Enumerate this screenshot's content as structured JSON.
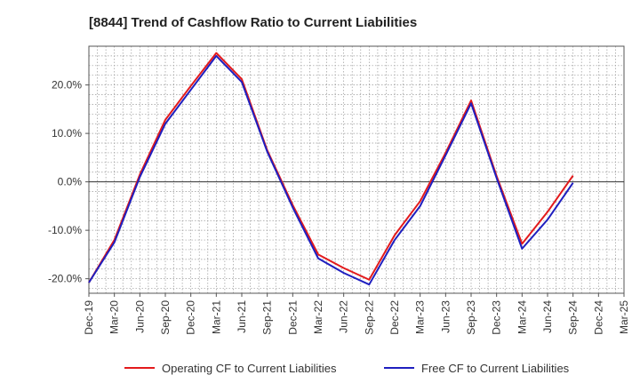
{
  "chart_data": {
    "type": "line",
    "title": "[8844]  Trend of Cashflow Ratio to Current Liabilities",
    "xlabel": "",
    "ylabel": "",
    "categories": [
      "Dec-19",
      "Mar-20",
      "Jun-20",
      "Sep-20",
      "Dec-20",
      "Mar-21",
      "Jun-21",
      "Sep-21",
      "Dec-21",
      "Mar-22",
      "Jun-22",
      "Sep-22",
      "Dec-22",
      "Mar-23",
      "Jun-23",
      "Sep-23",
      "Dec-23",
      "Mar-24",
      "Jun-24",
      "Sep-24",
      "Dec-24",
      "Mar-25"
    ],
    "ylim": [
      -23.0,
      28.0
    ],
    "yticks": [
      -20,
      -10,
      0,
      10,
      20
    ],
    "ytick_labels": [
      "-20.0%",
      "-10.0%",
      "0.0%",
      "10.0%",
      "20.0%"
    ],
    "grid": true,
    "legend_position": "bottom",
    "series": [
      {
        "name": "Operating CF to Current Liabilities",
        "color": "#e31a1c",
        "values": [
          -20.8,
          -12.0,
          1.5,
          12.8,
          19.8,
          26.6,
          21.2,
          6.5,
          -4.8,
          -15.0,
          -17.8,
          -20.2,
          -11.0,
          -4.0,
          6.0,
          16.8,
          1.2,
          -12.8,
          -6.2,
          1.3,
          null,
          null
        ]
      },
      {
        "name": "Free CF to Current Liabilities",
        "color": "#1f1fbf",
        "values": [
          -20.8,
          -12.5,
          1.0,
          12.0,
          19.0,
          26.0,
          20.6,
          6.2,
          -5.3,
          -15.8,
          -18.8,
          -21.2,
          -12.0,
          -5.0,
          5.5,
          16.2,
          0.8,
          -13.8,
          -7.8,
          -0.2,
          null,
          null
        ]
      }
    ]
  }
}
